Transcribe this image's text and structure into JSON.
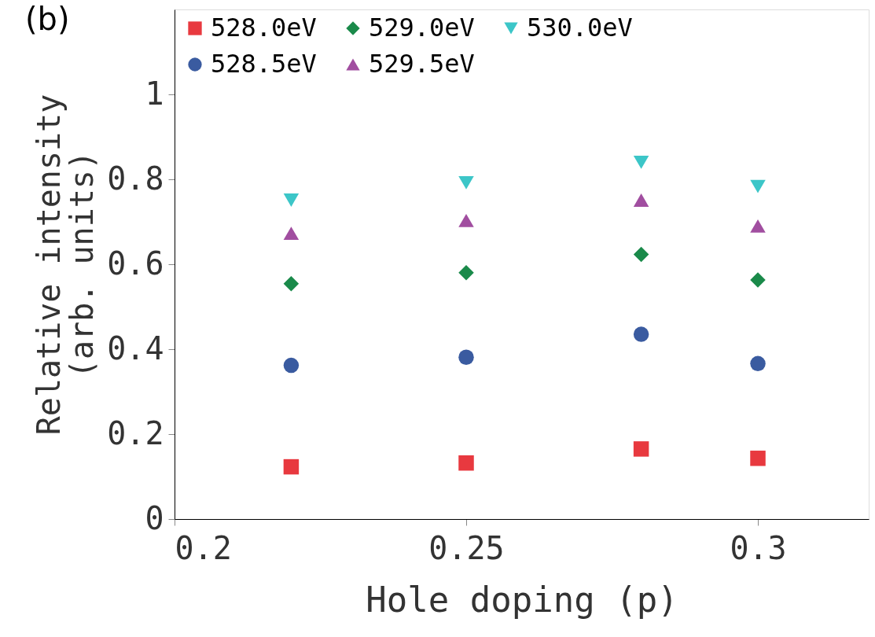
{
  "chart_data": {
    "type": "scatter",
    "xlabel": "Hole doping (p)",
    "ylabel": "Relative intensity\n(arb. units)",
    "annotations": [
      "(b)"
    ],
    "x": [
      0.22,
      0.25,
      0.28,
      0.3
    ],
    "xlim": [
      0.2,
      0.319
    ],
    "xticks": [
      0.2,
      0.25,
      0.3
    ],
    "ylim": [
      0,
      1.2
    ],
    "yticks": [
      0,
      0.2,
      0.4,
      0.6,
      0.8,
      1
    ],
    "grid": false,
    "legend": "top",
    "series": [
      {
        "name": "528.0eV",
        "color": "#e8393f",
        "marker": "square",
        "values": [
          0.123,
          0.132,
          0.165,
          0.143
        ]
      },
      {
        "name": "528.5eV",
        "color": "#3a5ba0",
        "marker": "circle",
        "values": [
          0.362,
          0.381,
          0.435,
          0.366
        ]
      },
      {
        "name": "529.0eV",
        "color": "#1a8a4a",
        "marker": "diamond",
        "values": [
          0.554,
          0.58,
          0.623,
          0.563
        ]
      },
      {
        "name": "529.5eV",
        "color": "#a14ea0",
        "marker": "triangle-up",
        "values": [
          0.673,
          0.703,
          0.751,
          0.69
        ]
      },
      {
        "name": "530.0eV",
        "color": "#3cc6c8",
        "marker": "triangle-down",
        "values": [
          0.751,
          0.792,
          0.84,
          0.783
        ]
      }
    ]
  }
}
